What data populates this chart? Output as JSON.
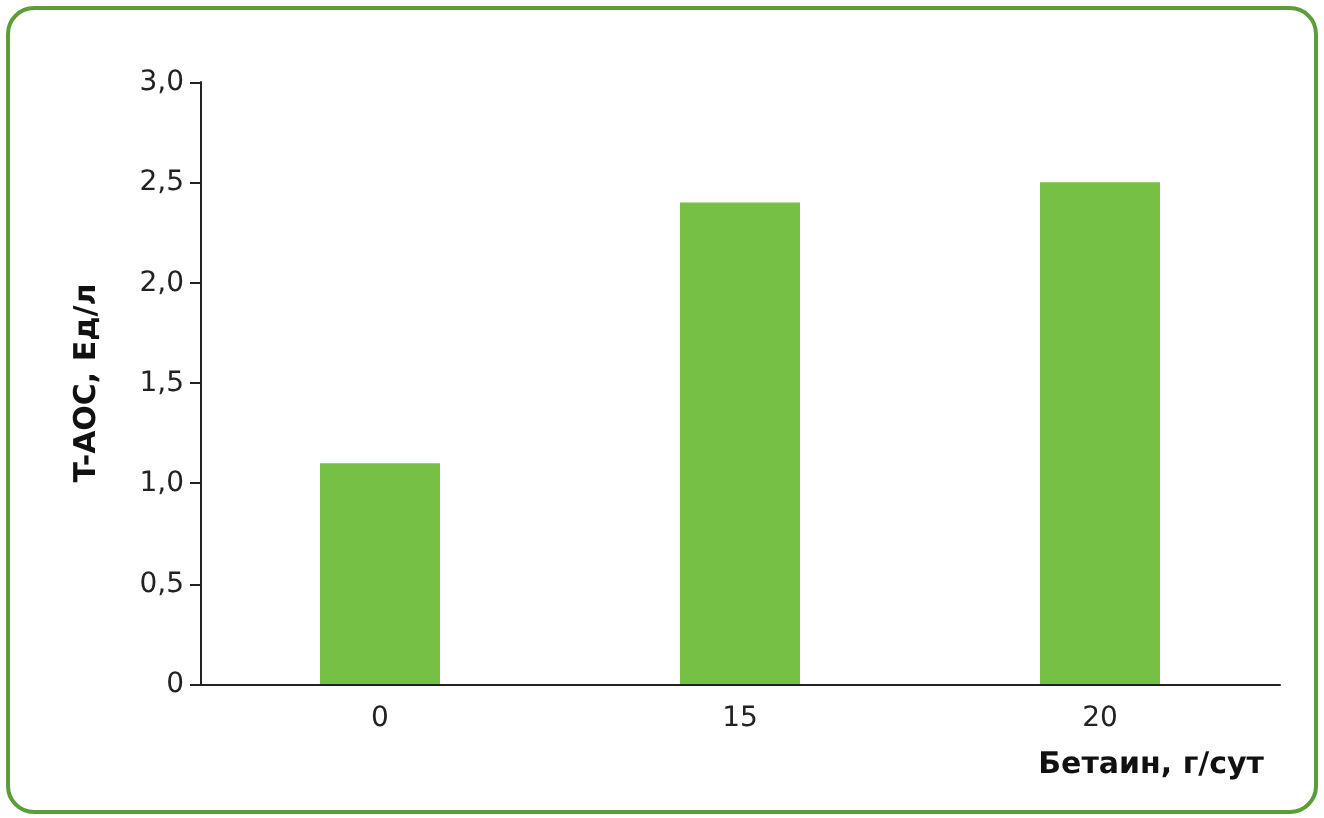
{
  "chart_data": {
    "type": "bar",
    "xlabel": "Бетаин, г/сут",
    "ylabel": "T-AOC, Ед/л",
    "categories": [
      "0",
      "15",
      "20"
    ],
    "values": [
      1.1,
      2.4,
      2.5
    ],
    "color": "#76c043",
    "ylim": [
      0,
      3
    ],
    "yticks": [
      {
        "value": 0,
        "label": "0"
      },
      {
        "value": 0.5,
        "label": "0,5"
      },
      {
        "value": 1,
        "label": "1,0"
      },
      {
        "value": 1.5,
        "label": "1,5"
      },
      {
        "value": 2,
        "label": "2,0"
      },
      {
        "value": 2.5,
        "label": "2,5"
      },
      {
        "value": 3,
        "label": "3,0"
      }
    ],
    "grid": false
  }
}
